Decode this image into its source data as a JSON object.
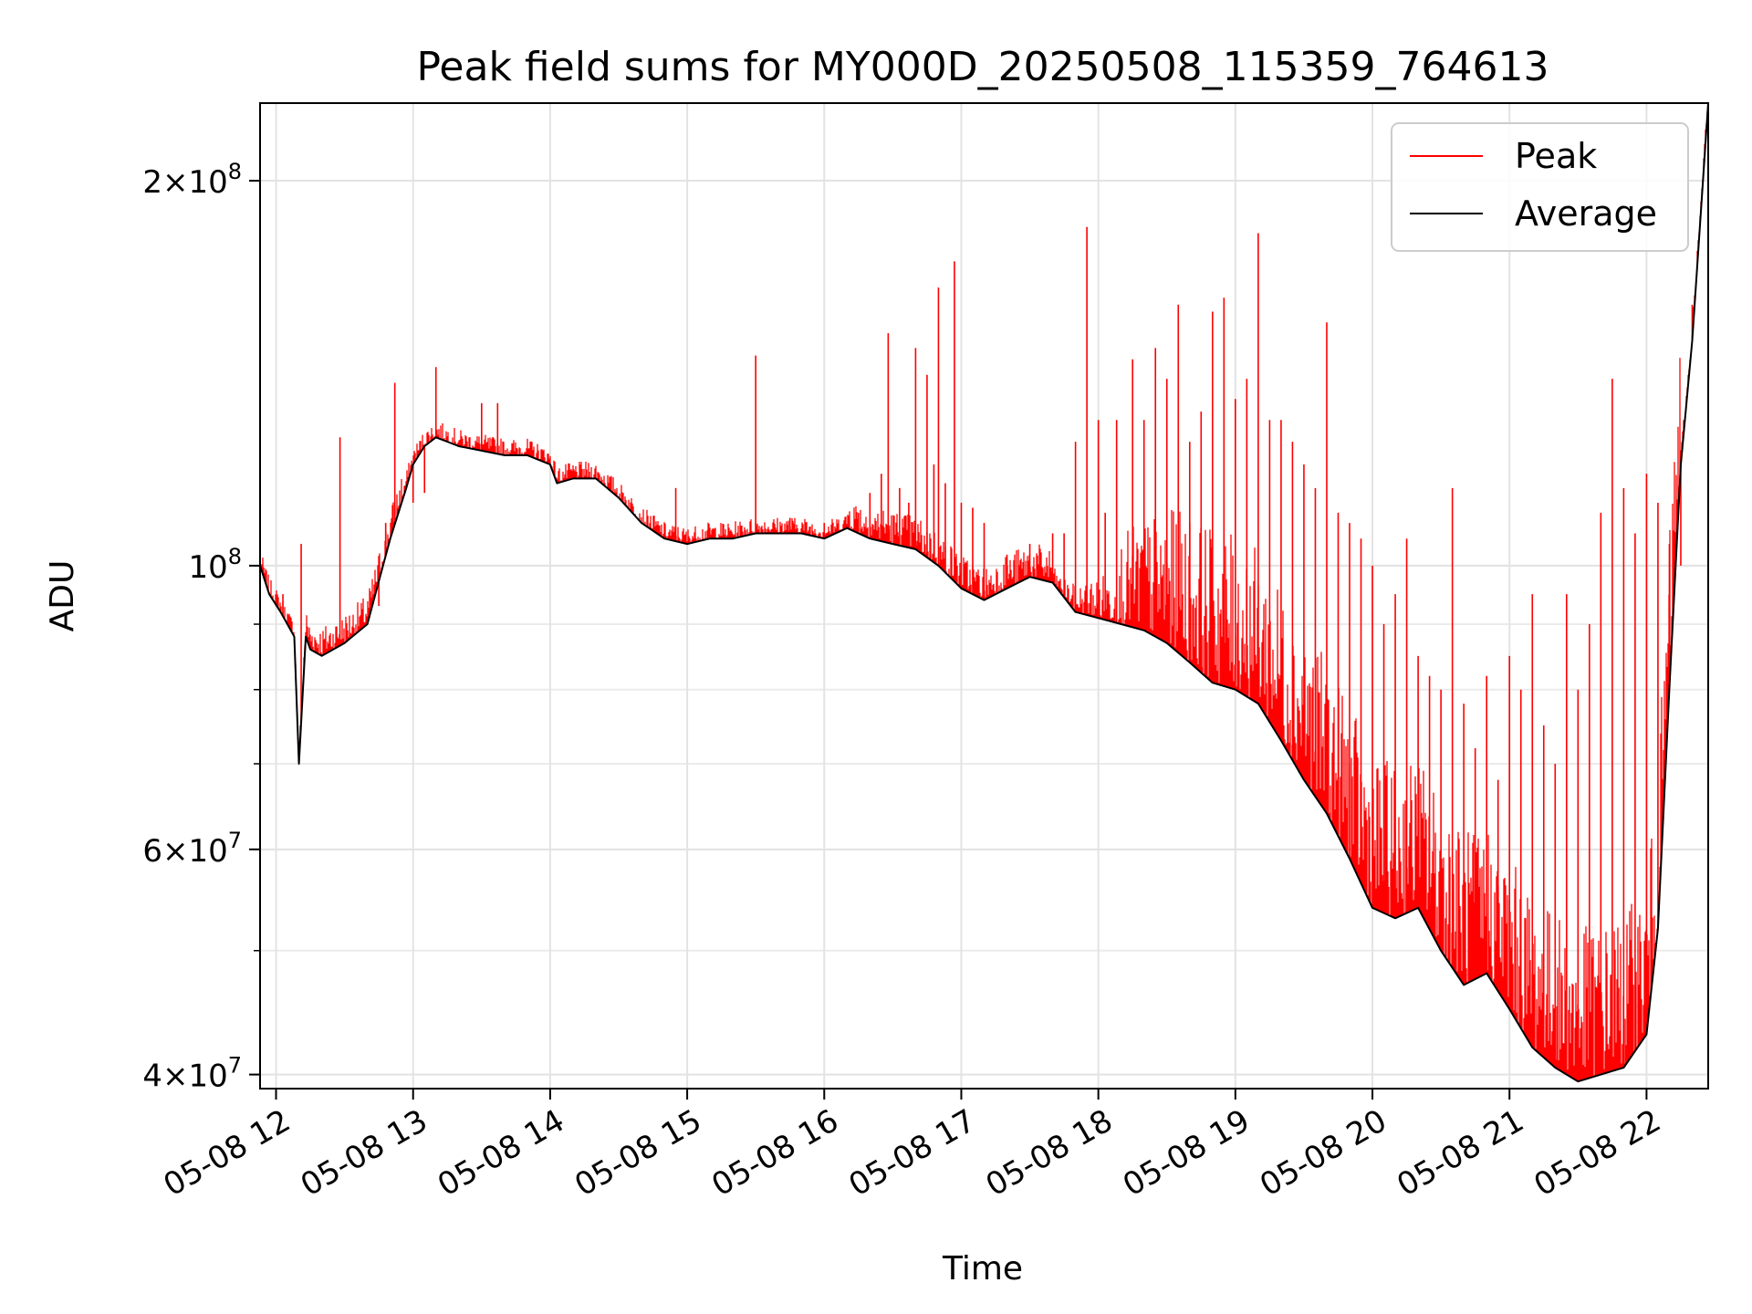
{
  "chart_data": {
    "type": "line",
    "title": "Peak field sums for MY000D_20250508_115359_764613",
    "xlabel": "Time",
    "ylabel": "ADU",
    "yscale": "log",
    "ylim": [
      39000000,
      230000000
    ],
    "xlim": [
      "2025-05-08 11:53",
      "2025-05-08 22:27"
    ],
    "grid": true,
    "legend": "top-right",
    "x_ticks": [
      "05-08 12",
      "05-08 13",
      "05-08 14",
      "05-08 15",
      "05-08 16",
      "05-08 17",
      "05-08 18",
      "05-08 19",
      "05-08 20",
      "05-08 21",
      "05-08 22"
    ],
    "y_ticks": [
      {
        "value": 40000000,
        "mantissa": "4",
        "exp": "7"
      },
      {
        "value": 60000000,
        "mantissa": "6",
        "exp": "7"
      },
      {
        "value": 100000000,
        "mantissa": "",
        "exp": "8"
      },
      {
        "value": 200000000,
        "mantissa": "2",
        "exp": "8"
      }
    ],
    "series": [
      {
        "name": "Average",
        "color": "#000000",
        "x": [
          "11:53",
          "11:57",
          "12:02",
          "12:08",
          "12:10",
          "12:13",
          "12:15",
          "12:20",
          "12:25",
          "12:30",
          "12:40",
          "12:50",
          "12:57",
          "13:00",
          "13:05",
          "13:10",
          "13:15",
          "13:20",
          "13:30",
          "13:40",
          "13:50",
          "14:00",
          "14:03",
          "14:10",
          "14:20",
          "14:30",
          "14:40",
          "14:50",
          "15:00",
          "15:10",
          "15:20",
          "15:30",
          "15:40",
          "15:50",
          "16:00",
          "16:10",
          "16:20",
          "16:30",
          "16:40",
          "16:50",
          "17:00",
          "17:10",
          "17:20",
          "17:30",
          "17:40",
          "17:50",
          "18:00",
          "18:10",
          "18:20",
          "18:30",
          "18:40",
          "18:50",
          "19:00",
          "19:10",
          "19:20",
          "19:30",
          "19:40",
          "19:50",
          "20:00",
          "20:10",
          "20:20",
          "20:30",
          "20:40",
          "20:50",
          "21:00",
          "21:10",
          "21:20",
          "21:30",
          "21:40",
          "21:50",
          "22:00",
          "22:05",
          "22:10",
          "22:15",
          "22:20",
          "22:27"
        ],
        "y": [
          100000000,
          95000000,
          92000000,
          88000000,
          70000000,
          88000000,
          86000000,
          85000000,
          86000000,
          87000000,
          90000000,
          105000000,
          115000000,
          120000000,
          124000000,
          126000000,
          125000000,
          124000000,
          123000000,
          122000000,
          122000000,
          120000000,
          116000000,
          117000000,
          117000000,
          113000000,
          108000000,
          105000000,
          104000000,
          105000000,
          105000000,
          106000000,
          106000000,
          106000000,
          105000000,
          107000000,
          105000000,
          104000000,
          103000000,
          100000000,
          96000000,
          94000000,
          96000000,
          98000000,
          97000000,
          92000000,
          91000000,
          90000000,
          89000000,
          87000000,
          84000000,
          81000000,
          80000000,
          78000000,
          73000000,
          68000000,
          64000000,
          59000000,
          54000000,
          53000000,
          54000000,
          50000000,
          47000000,
          48000000,
          45000000,
          42000000,
          40500000,
          39500000,
          40000000,
          40500000,
          43000000,
          52000000,
          80000000,
          120000000,
          150000000,
          230000000
        ]
      },
      {
        "name": "Peak",
        "color": "#ff0000",
        "spikes": [
          [
            "12:03",
            95000000
          ],
          [
            "12:11",
            104000000
          ],
          [
            "12:28",
            126000000
          ],
          [
            "12:38",
            90000000
          ],
          [
            "12:45",
            93000000
          ],
          [
            "12:48",
            108000000
          ],
          [
            "12:52",
            139000000
          ],
          [
            "12:55",
            112000000
          ],
          [
            "13:00",
            112000000
          ],
          [
            "13:05",
            114000000
          ],
          [
            "13:10",
            143000000
          ],
          [
            "13:30",
            134000000
          ],
          [
            "13:37",
            134000000
          ],
          [
            "14:55",
            115000000
          ],
          [
            "15:30",
            146000000
          ],
          [
            "15:45",
            109000000
          ],
          [
            "16:00",
            108000000
          ],
          [
            "16:15",
            110000000
          ],
          [
            "16:20",
            114000000
          ],
          [
            "16:25",
            118000000
          ],
          [
            "16:28",
            152000000
          ],
          [
            "16:33",
            115000000
          ],
          [
            "16:37",
            112000000
          ],
          [
            "16:40",
            148000000
          ],
          [
            "16:45",
            141000000
          ],
          [
            "16:48",
            120000000
          ],
          [
            "16:50",
            165000000
          ],
          [
            "16:53",
            116000000
          ],
          [
            "16:57",
            173000000
          ],
          [
            "17:00",
            112000000
          ],
          [
            "17:05",
            111000000
          ],
          [
            "17:10",
            108000000
          ],
          [
            "17:20",
            102000000
          ],
          [
            "17:30",
            104000000
          ],
          [
            "17:40",
            106000000
          ],
          [
            "17:45",
            106000000
          ],
          [
            "17:50",
            125000000
          ],
          [
            "17:55",
            184000000
          ],
          [
            "18:00",
            130000000
          ],
          [
            "18:03",
            110000000
          ],
          [
            "18:08",
            130000000
          ],
          [
            "18:15",
            145000000
          ],
          [
            "18:20",
            130000000
          ],
          [
            "18:25",
            148000000
          ],
          [
            "18:30",
            140000000
          ],
          [
            "18:35",
            160000000
          ],
          [
            "18:40",
            125000000
          ],
          [
            "18:45",
            132000000
          ],
          [
            "18:50",
            158000000
          ],
          [
            "18:55",
            162000000
          ],
          [
            "19:00",
            135000000
          ],
          [
            "19:05",
            140000000
          ],
          [
            "19:10",
            182000000
          ],
          [
            "19:15",
            130000000
          ],
          [
            "19:20",
            130000000
          ],
          [
            "19:25",
            125000000
          ],
          [
            "19:30",
            120000000
          ],
          [
            "19:35",
            115000000
          ],
          [
            "19:40",
            155000000
          ],
          [
            "19:45",
            110000000
          ],
          [
            "19:50",
            108000000
          ],
          [
            "19:55",
            105000000
          ],
          [
            "20:00",
            100000000
          ],
          [
            "20:05",
            90000000
          ],
          [
            "20:10",
            95000000
          ],
          [
            "20:15",
            105000000
          ],
          [
            "20:20",
            85000000
          ],
          [
            "20:25",
            82000000
          ],
          [
            "20:30",
            80000000
          ],
          [
            "20:35",
            115000000
          ],
          [
            "20:40",
            78000000
          ],
          [
            "20:45",
            72000000
          ],
          [
            "20:50",
            82000000
          ],
          [
            "20:55",
            68000000
          ],
          [
            "21:00",
            85000000
          ],
          [
            "21:05",
            80000000
          ],
          [
            "21:10",
            95000000
          ],
          [
            "21:15",
            75000000
          ],
          [
            "21:20",
            70000000
          ],
          [
            "21:25",
            95000000
          ],
          [
            "21:30",
            80000000
          ],
          [
            "21:35",
            90000000
          ],
          [
            "21:40",
            110000000
          ],
          [
            "21:45",
            140000000
          ],
          [
            "21:50",
            115000000
          ],
          [
            "21:55",
            106000000
          ],
          [
            "22:00",
            118000000
          ],
          [
            "22:05",
            112000000
          ],
          [
            "22:10",
            104000000
          ],
          [
            "22:15",
            100000000
          ],
          [
            "22:20",
            160000000
          ]
        ]
      }
    ]
  }
}
